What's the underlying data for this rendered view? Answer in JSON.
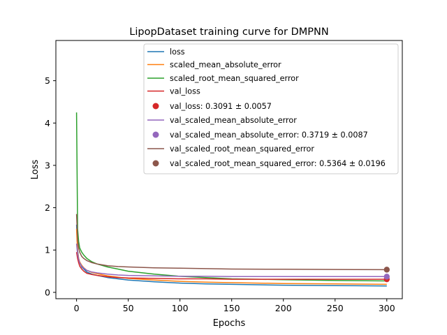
{
  "chart_data": {
    "type": "line",
    "title": "LipopDataset training curve for DMPNN",
    "xlabel": "Epochs",
    "ylabel": "Loss",
    "xlim": [
      -20,
      315
    ],
    "ylim": [
      -0.15,
      5.95
    ],
    "xticks": [
      "0",
      "50",
      "100",
      "150",
      "200",
      "250",
      "300"
    ],
    "yticks": [
      "0",
      "1",
      "2",
      "3",
      "4",
      "5"
    ],
    "grid": false,
    "legend_position": "top-right",
    "x": [
      0,
      1,
      2,
      3,
      5,
      7,
      10,
      15,
      20,
      30,
      40,
      50,
      75,
      100,
      125,
      150,
      200,
      250,
      300
    ],
    "series": [
      {
        "name": "loss",
        "kind": "line",
        "color": "#1f77b4",
        "values": [
          1.6,
          1.0,
          0.8,
          0.7,
          0.6,
          0.55,
          0.48,
          0.43,
          0.4,
          0.35,
          0.32,
          0.29,
          0.25,
          0.22,
          0.2,
          0.19,
          0.17,
          0.16,
          0.15
        ]
      },
      {
        "name": "scaled_mean_absolute_error",
        "kind": "line",
        "color": "#ff7f0e",
        "values": [
          1.5,
          0.95,
          0.8,
          0.72,
          0.64,
          0.58,
          0.52,
          0.47,
          0.44,
          0.39,
          0.36,
          0.33,
          0.29,
          0.26,
          0.24,
          0.23,
          0.21,
          0.2,
          0.19
        ]
      },
      {
        "name": "scaled_root_mean_squared_error",
        "kind": "line",
        "color": "#2ca02c",
        "values": [
          4.25,
          1.5,
          1.2,
          1.05,
          0.95,
          0.88,
          0.8,
          0.72,
          0.67,
          0.6,
          0.55,
          0.5,
          0.43,
          0.38,
          0.35,
          0.32,
          0.3,
          0.28,
          0.27
        ]
      },
      {
        "name": "val_loss",
        "kind": "line",
        "color": "#d62728",
        "values": [
          0.95,
          0.8,
          0.7,
          0.62,
          0.55,
          0.5,
          0.45,
          0.42,
          0.4,
          0.37,
          0.35,
          0.34,
          0.33,
          0.32,
          0.32,
          0.31,
          0.31,
          0.31,
          0.31
        ]
      },
      {
        "name": "val_loss: 0.3091 ± 0.0057",
        "kind": "point",
        "color": "#d62728",
        "x_point": 300,
        "y_point": 0.3091
      },
      {
        "name": "val_scaled_mean_absolute_error",
        "kind": "line",
        "color": "#9467bd",
        "values": [
          1.15,
          0.9,
          0.78,
          0.7,
          0.62,
          0.57,
          0.52,
          0.48,
          0.46,
          0.43,
          0.41,
          0.4,
          0.39,
          0.38,
          0.38,
          0.375,
          0.372,
          0.372,
          0.372
        ]
      },
      {
        "name": "val_scaled_mean_absolute_error: 0.3719 ± 0.0087",
        "kind": "point",
        "color": "#9467bd",
        "x_point": 300,
        "y_point": 0.3719
      },
      {
        "name": "val_scaled_root_mean_squared_error",
        "kind": "line",
        "color": "#8c564b",
        "values": [
          1.85,
          1.25,
          1.05,
          0.95,
          0.85,
          0.8,
          0.75,
          0.7,
          0.67,
          0.63,
          0.61,
          0.6,
          0.58,
          0.57,
          0.56,
          0.55,
          0.545,
          0.54,
          0.536
        ]
      },
      {
        "name": "val_scaled_root_mean_squared_error: 0.5364 ± 0.0196",
        "kind": "point",
        "color": "#8c564b",
        "x_point": 300,
        "y_point": 0.5364
      }
    ]
  }
}
